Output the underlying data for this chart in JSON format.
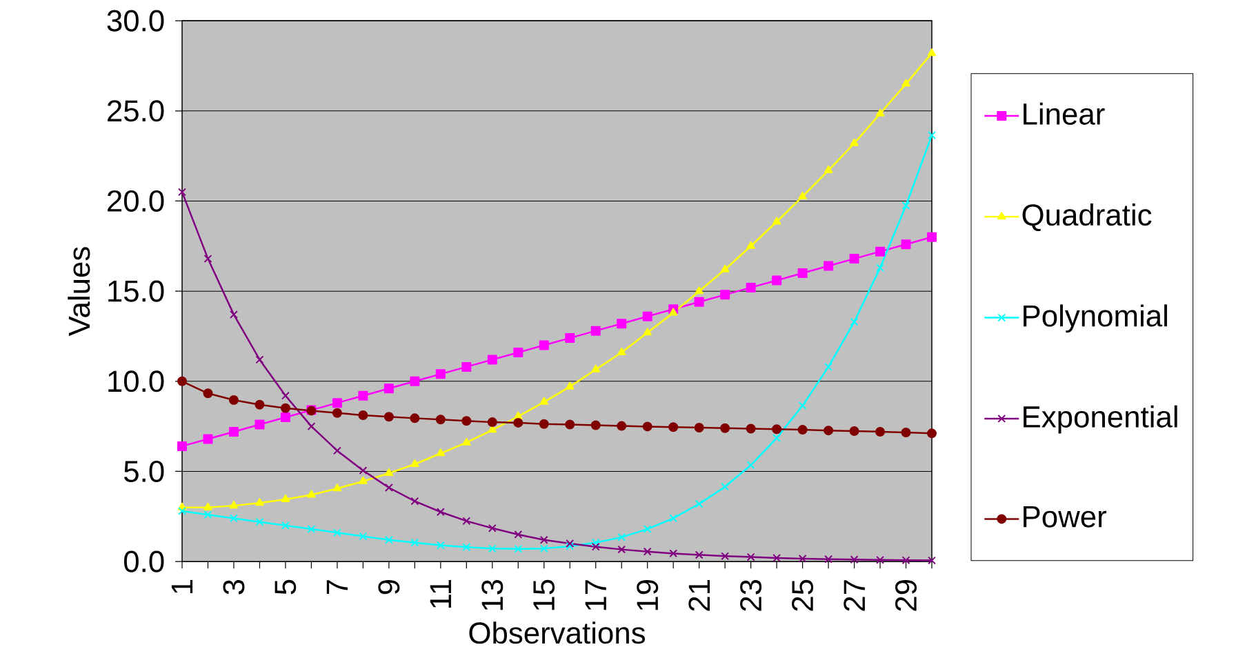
{
  "chart_data": {
    "type": "line",
    "xlabel": "Observations",
    "ylabel": "Values",
    "x": [
      1,
      2,
      3,
      4,
      5,
      6,
      7,
      8,
      9,
      10,
      11,
      12,
      13,
      14,
      15,
      16,
      17,
      18,
      19,
      20,
      21,
      22,
      23,
      24,
      25,
      26,
      27,
      28,
      29,
      30
    ],
    "series": [
      {
        "name": "Linear",
        "color": "#ff00ff",
        "marker": "square",
        "values": [
          6.4,
          6.8,
          7.2,
          7.6,
          8.0,
          8.4,
          8.8,
          9.2,
          9.6,
          10.0,
          10.4,
          10.8,
          11.2,
          11.6,
          12.0,
          12.4,
          12.8,
          13.2,
          13.6,
          14.0,
          14.4,
          14.8,
          15.2,
          15.6,
          16.0,
          16.4,
          16.8,
          17.2,
          17.6,
          18.0
        ]
      },
      {
        "name": "Quadratic",
        "color": "#ffff00",
        "marker": "triangle",
        "values": [
          3.0,
          3.0,
          3.1,
          3.25,
          3.45,
          3.7,
          4.05,
          4.45,
          4.9,
          5.4,
          6.0,
          6.6,
          7.3,
          8.05,
          8.85,
          9.7,
          10.65,
          11.6,
          12.7,
          13.8,
          15.0,
          16.2,
          17.5,
          18.85,
          20.25,
          21.7,
          23.2,
          24.85,
          26.5,
          28.2
        ]
      },
      {
        "name": "Polynomial",
        "color": "#00ffff",
        "marker": "cross",
        "values": [
          2.8,
          2.6,
          2.4,
          2.2,
          2.0,
          1.8,
          1.6,
          1.4,
          1.2,
          1.05,
          0.9,
          0.8,
          0.72,
          0.7,
          0.72,
          0.85,
          1.05,
          1.35,
          1.8,
          2.4,
          3.2,
          4.15,
          5.35,
          6.85,
          8.65,
          10.8,
          13.3,
          16.3,
          19.75,
          23.65
        ]
      },
      {
        "name": "Exponential",
        "color": "#800080",
        "marker": "cross",
        "values": [
          20.5,
          16.8,
          13.7,
          11.2,
          9.2,
          7.5,
          6.15,
          5.05,
          4.1,
          3.35,
          2.75,
          2.25,
          1.85,
          1.5,
          1.2,
          1.0,
          0.82,
          0.67,
          0.55,
          0.45,
          0.37,
          0.3,
          0.25,
          0.2,
          0.16,
          0.13,
          0.11,
          0.09,
          0.07,
          0.06
        ]
      },
      {
        "name": "Power",
        "color": "#800000",
        "marker": "circle",
        "values": [
          10.0,
          9.33,
          8.96,
          8.7,
          8.51,
          8.37,
          8.24,
          8.12,
          8.03,
          7.95,
          7.88,
          7.8,
          7.73,
          7.7,
          7.63,
          7.6,
          7.56,
          7.52,
          7.49,
          7.46,
          7.43,
          7.4,
          7.37,
          7.34,
          7.31,
          7.27,
          7.24,
          7.2,
          7.16,
          7.11
        ]
      }
    ],
    "xlim": [
      1,
      30
    ],
    "xticks": [
      1,
      {
        "value": 2,
        "label": null
      },
      3,
      {
        "value": 4,
        "label": null
      },
      5,
      {
        "value": 6,
        "label": null
      },
      7,
      {
        "value": 8,
        "label": null
      },
      9,
      {
        "value": 10,
        "label": null
      },
      11,
      {
        "value": 12,
        "label": null
      },
      13,
      {
        "value": 14,
        "label": null
      },
      15,
      {
        "value": 16,
        "label": null
      },
      17,
      {
        "value": 18,
        "label": null
      },
      19,
      {
        "value": 20,
        "label": null
      },
      21,
      {
        "value": 22,
        "label": null
      },
      23,
      {
        "value": 24,
        "label": null
      },
      25,
      {
        "value": 26,
        "label": null
      },
      27,
      {
        "value": 28,
        "label": null
      },
      29,
      {
        "value": 30,
        "label": null
      }
    ],
    "ylim": [
      0,
      30
    ],
    "yticks": [
      {
        "value": 0,
        "label": "0.0"
      },
      {
        "value": 5,
        "label": "5.0"
      },
      {
        "value": 10,
        "label": "10.0"
      },
      {
        "value": 15,
        "label": "15.0"
      },
      {
        "value": 20,
        "label": "20.0"
      },
      {
        "value": 25,
        "label": "25.0"
      },
      {
        "value": 30,
        "label": "30.0"
      }
    ],
    "grid": "y",
    "legend": "right",
    "line_style": "solid"
  }
}
